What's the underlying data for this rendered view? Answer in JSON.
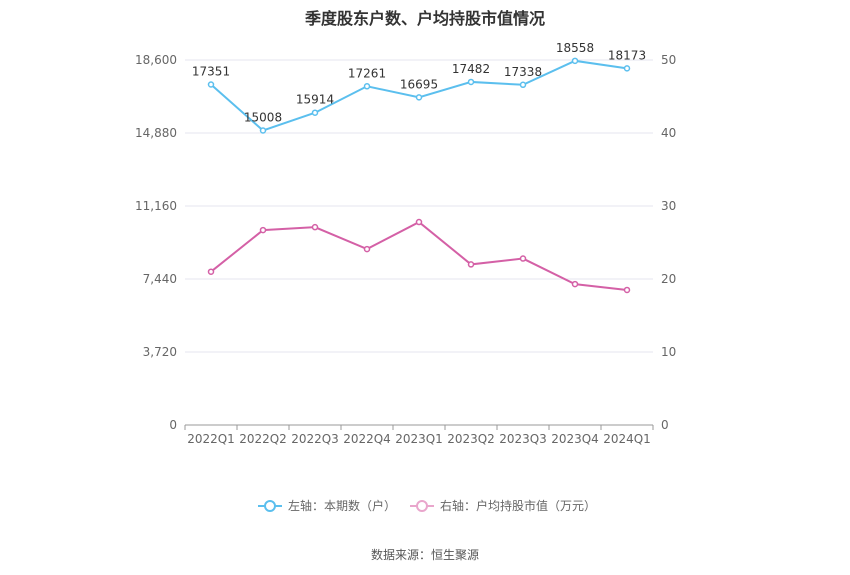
{
  "chart_data": {
    "type": "line",
    "title": "季度股东户数、户均持股市值情况",
    "categories": [
      "2022Q1",
      "2022Q2",
      "2022Q3",
      "2022Q4",
      "2023Q1",
      "2023Q2",
      "2023Q3",
      "2023Q4",
      "2024Q1"
    ],
    "left_axis": {
      "ticks": [
        0,
        3720,
        7440,
        11160,
        14880,
        18600
      ],
      "tick_labels": [
        "0",
        "3,720",
        "7,440",
        "11,160",
        "14,880",
        "18,600"
      ],
      "ylim": [
        0,
        18600
      ]
    },
    "right_axis": {
      "ticks": [
        0,
        10,
        20,
        30,
        40,
        50
      ],
      "tick_labels": [
        "0",
        "10",
        "20",
        "30",
        "40",
        "50"
      ],
      "ylim": [
        0,
        50
      ]
    },
    "grid": true,
    "legend_position": "bottom-center",
    "series": [
      {
        "name": "左轴：本期数（户）",
        "axis": "left",
        "color": "#5bbfee",
        "values": [
          17351,
          15008,
          15914,
          17261,
          16695,
          17482,
          17338,
          18558,
          18173
        ],
        "labels": [
          "17351",
          "15008",
          "15914",
          "17261",
          "16695",
          "17482",
          "17338",
          "18558",
          "18173"
        ]
      },
      {
        "name": "右轴：户均持股市值（万元）",
        "axis": "right",
        "color": "#d460a6",
        "values": [
          21.0,
          26.7,
          27.1,
          24.1,
          27.8,
          22.0,
          22.8,
          19.3,
          18.5
        ]
      }
    ]
  },
  "source_text": "数据来源：恒生聚源"
}
